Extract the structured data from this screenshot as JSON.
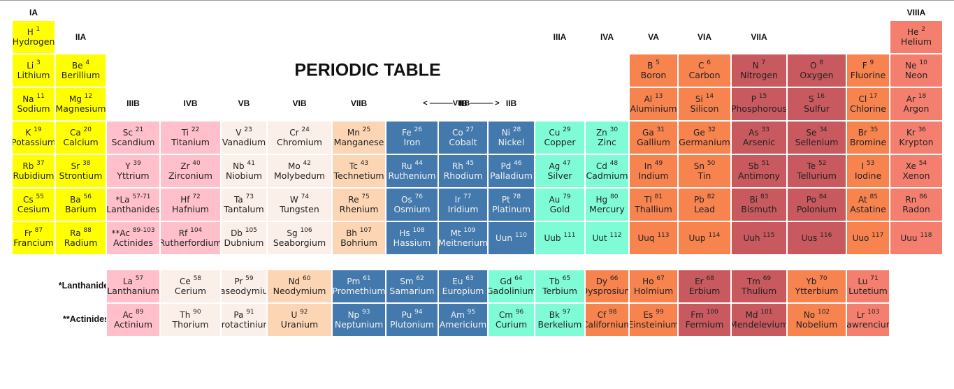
{
  "title": "PERIODIC TABLE",
  "group_labels": [
    "IA",
    "IIA",
    "IIIB",
    "IVB",
    "VB",
    "VIB",
    "VIIB",
    "VIIIB",
    "IB",
    "IIB",
    "IIIA",
    "IVA",
    "VA",
    "VIA",
    "VIIA",
    "VIIIA"
  ],
  "viiib_label": "<  ———VIIIB———  >",
  "row_labels": {
    "lanthanides": "*Lanthanides",
    "actinides": "**Actinides"
  },
  "category_colors": {
    "s": "#ffff00",
    "ln_ac": "#ffc0cb",
    "pink": "#ffc0cb",
    "pale": "#fbefe9",
    "peach": "#fcd5b4",
    "blue": "#4379ad",
    "aqua": "#7ffcd6",
    "orange": "#f7834f",
    "red": "#c8595e",
    "salmon": "#f47f6f"
  },
  "elements": [
    {
      "sym": "H",
      "num": "1",
      "name": "Hydrogen",
      "cat": "s"
    },
    {
      "sym": "He",
      "num": "2",
      "name": "Helium",
      "cat": "salmon"
    },
    {
      "sym": "Li",
      "num": "3",
      "name": "Lithium",
      "cat": "s"
    },
    {
      "sym": "Be",
      "num": "4",
      "name": "Berillium",
      "cat": "s"
    },
    {
      "sym": "B",
      "num": "5",
      "name": "Boron",
      "cat": "orange"
    },
    {
      "sym": "C",
      "num": "6",
      "name": "Carbon",
      "cat": "orange"
    },
    {
      "sym": "N",
      "num": "7",
      "name": "Nitrogen",
      "cat": "red"
    },
    {
      "sym": "O",
      "num": "8",
      "name": "Oxygen",
      "cat": "red"
    },
    {
      "sym": "F",
      "num": "9",
      "name": "Fluorine",
      "cat": "orange"
    },
    {
      "sym": "Ne",
      "num": "10",
      "name": "Neon",
      "cat": "salmon"
    },
    {
      "sym": "Na",
      "num": "11",
      "name": "Sodium",
      "cat": "s"
    },
    {
      "sym": "Mg",
      "num": "12",
      "name": "Magnesium",
      "cat": "s"
    },
    {
      "sym": "Al",
      "num": "13",
      "name": "Aluminium",
      "cat": "orange"
    },
    {
      "sym": "Si",
      "num": "14",
      "name": "Silicon",
      "cat": "orange"
    },
    {
      "sym": "P",
      "num": "15",
      "name": "Phosphorous",
      "cat": "red"
    },
    {
      "sym": "S",
      "num": "16",
      "name": "Sulfur",
      "cat": "red"
    },
    {
      "sym": "Cl",
      "num": "17",
      "name": "Chlorine",
      "cat": "orange"
    },
    {
      "sym": "Ar",
      "num": "18",
      "name": "Argon",
      "cat": "salmon"
    },
    {
      "sym": "K",
      "num": "19",
      "name": "Potassium",
      "cat": "s"
    },
    {
      "sym": "Ca",
      "num": "20",
      "name": "Calcium",
      "cat": "s"
    },
    {
      "sym": "Sc",
      "num": "21",
      "name": "Scandium",
      "cat": "pink"
    },
    {
      "sym": "Ti",
      "num": "22",
      "name": "Titanium",
      "cat": "pink"
    },
    {
      "sym": "V",
      "num": "23",
      "name": "Vanadium",
      "cat": "pale"
    },
    {
      "sym": "Cr",
      "num": "24",
      "name": "Chromium",
      "cat": "pale"
    },
    {
      "sym": "Mn",
      "num": "25",
      "name": "Manganese",
      "cat": "peach"
    },
    {
      "sym": "Fe",
      "num": "26",
      "name": "Iron",
      "cat": "blue"
    },
    {
      "sym": "Co",
      "num": "27",
      "name": "Cobalt",
      "cat": "blue"
    },
    {
      "sym": "Ni",
      "num": "28",
      "name": "Nickel",
      "cat": "blue"
    },
    {
      "sym": "Cu",
      "num": "29",
      "name": "Copper",
      "cat": "aqua"
    },
    {
      "sym": "Zn",
      "num": "30",
      "name": "Zinc",
      "cat": "aqua"
    },
    {
      "sym": "Ga",
      "num": "31",
      "name": "Gallium",
      "cat": "orange"
    },
    {
      "sym": "Ge",
      "num": "32",
      "name": "Germanium",
      "cat": "orange"
    },
    {
      "sym": "As",
      "num": "33",
      "name": "Arsenic",
      "cat": "red"
    },
    {
      "sym": "Se",
      "num": "34",
      "name": "Sellenium",
      "cat": "red"
    },
    {
      "sym": "Br",
      "num": "35",
      "name": "Bromine",
      "cat": "orange"
    },
    {
      "sym": "Kr",
      "num": "36",
      "name": "Krypton",
      "cat": "salmon"
    },
    {
      "sym": "Rb",
      "num": "37",
      "name": "Rubidium",
      "cat": "s"
    },
    {
      "sym": "Sr",
      "num": "38",
      "name": "Strontium",
      "cat": "s"
    },
    {
      "sym": "Y",
      "num": "39",
      "name": "Yttrium",
      "cat": "pink"
    },
    {
      "sym": "Zr",
      "num": "40",
      "name": "Zirconium",
      "cat": "pink"
    },
    {
      "sym": "Nb",
      "num": "41",
      "name": "Niobium",
      "cat": "pale"
    },
    {
      "sym": "Mo",
      "num": "42",
      "name": "Molybedum",
      "cat": "pale"
    },
    {
      "sym": "Tc",
      "num": "43",
      "name": "Technetium",
      "cat": "peach"
    },
    {
      "sym": "Ru",
      "num": "44",
      "name": "Ruthenium",
      "cat": "blue"
    },
    {
      "sym": "Rh",
      "num": "45",
      "name": "Rhodium",
      "cat": "blue"
    },
    {
      "sym": "Pd",
      "num": "46",
      "name": "Palladium",
      "cat": "blue"
    },
    {
      "sym": "Ag",
      "num": "47",
      "name": "Silver",
      "cat": "aqua"
    },
    {
      "sym": "Cd",
      "num": "48",
      "name": "Cadmium",
      "cat": "aqua"
    },
    {
      "sym": "In",
      "num": "49",
      "name": "Indium",
      "cat": "orange"
    },
    {
      "sym": "Sn",
      "num": "50",
      "name": "Tin",
      "cat": "orange"
    },
    {
      "sym": "Sb",
      "num": "51",
      "name": "Antimony",
      "cat": "red"
    },
    {
      "sym": "Te",
      "num": "52",
      "name": "Tellurium",
      "cat": "red"
    },
    {
      "sym": "I",
      "num": "53",
      "name": "Iodine",
      "cat": "orange"
    },
    {
      "sym": "Xe",
      "num": "54",
      "name": "Xenon",
      "cat": "salmon"
    },
    {
      "sym": "Cs",
      "num": "55",
      "name": "Cesium",
      "cat": "s"
    },
    {
      "sym": "Ba",
      "num": "56",
      "name": "Barium",
      "cat": "s"
    },
    {
      "sym": "*La",
      "num": "57-71",
      "name": "Lanthanides",
      "cat": "ln_ac"
    },
    {
      "sym": "Hf",
      "num": "72",
      "name": "Hafnium",
      "cat": "pink"
    },
    {
      "sym": "Ta",
      "num": "73",
      "name": "Tantalum",
      "cat": "pale"
    },
    {
      "sym": "W",
      "num": "74",
      "name": "Tungsten",
      "cat": "pale"
    },
    {
      "sym": "Re",
      "num": "75",
      "name": "Rhenium",
      "cat": "peach"
    },
    {
      "sym": "Os",
      "num": "76",
      "name": "Osmium",
      "cat": "blue"
    },
    {
      "sym": "Ir",
      "num": "77",
      "name": "Iridium",
      "cat": "blue"
    },
    {
      "sym": "Pt",
      "num": "78",
      "name": "Platinum",
      "cat": "blue"
    },
    {
      "sym": "Au",
      "num": "79",
      "name": "Gold",
      "cat": "aqua"
    },
    {
      "sym": "Hg",
      "num": "80",
      "name": "Mercury",
      "cat": "aqua"
    },
    {
      "sym": "Tl",
      "num": "81",
      "name": "Thallium",
      "cat": "orange"
    },
    {
      "sym": "Pb",
      "num": "82",
      "name": "Lead",
      "cat": "orange"
    },
    {
      "sym": "Bi",
      "num": "83",
      "name": "Bismuth",
      "cat": "red"
    },
    {
      "sym": "Po",
      "num": "84",
      "name": "Polonium",
      "cat": "red"
    },
    {
      "sym": "At",
      "num": "85",
      "name": "Astatine",
      "cat": "orange"
    },
    {
      "sym": "Rn",
      "num": "86",
      "name": "Radon",
      "cat": "salmon"
    },
    {
      "sym": "Fr",
      "num": "87",
      "name": "Francium",
      "cat": "s"
    },
    {
      "sym": "Ra",
      "num": "88",
      "name": "Radium",
      "cat": "s"
    },
    {
      "sym": "**Ac",
      "num": "89-103",
      "name": "Actinides",
      "cat": "ln_ac"
    },
    {
      "sym": "Rf",
      "num": "104",
      "name": "Rutherfordium",
      "cat": "pink"
    },
    {
      "sym": "Db",
      "num": "105",
      "name": "Dubnium",
      "cat": "pale"
    },
    {
      "sym": "Sg",
      "num": "106",
      "name": "Seaborgium",
      "cat": "pale"
    },
    {
      "sym": "Bh",
      "num": "107",
      "name": "Bohrium",
      "cat": "peach"
    },
    {
      "sym": "Hs",
      "num": "108",
      "name": "Hassium",
      "cat": "blue"
    },
    {
      "sym": "Mt",
      "num": "109",
      "name": "Meitnerium",
      "cat": "blue"
    },
    {
      "sym": "Uun",
      "num": "110",
      "name": "",
      "cat": "blue"
    },
    {
      "sym": "Uub",
      "num": "111",
      "name": "",
      "cat": "aqua"
    },
    {
      "sym": "Uut",
      "num": "112",
      "name": "",
      "cat": "aqua"
    },
    {
      "sym": "Uuq",
      "num": "113",
      "name": "",
      "cat": "orange"
    },
    {
      "sym": "Uup",
      "num": "114",
      "name": "",
      "cat": "orange"
    },
    {
      "sym": "Uuh",
      "num": "115",
      "name": "",
      "cat": "red"
    },
    {
      "sym": "Uus",
      "num": "116",
      "name": "",
      "cat": "red"
    },
    {
      "sym": "Uuo",
      "num": "117",
      "name": "",
      "cat": "orange"
    },
    {
      "sym": "Uuu",
      "num": "118",
      "name": "",
      "cat": "salmon"
    }
  ],
  "lanthanides": [
    {
      "sym": "La",
      "num": "57",
      "name": "Lanthanium",
      "cat": "pink"
    },
    {
      "sym": "Ce",
      "num": "58",
      "name": "Cerium",
      "cat": "pale"
    },
    {
      "sym": "Pr",
      "num": "59",
      "name": "Praseodymium",
      "cat": "pale"
    },
    {
      "sym": "Nd",
      "num": "60",
      "name": "Neodymium",
      "cat": "peach"
    },
    {
      "sym": "Pm",
      "num": "61",
      "name": "Promethium",
      "cat": "blue"
    },
    {
      "sym": "Sm",
      "num": "62",
      "name": "Samarium",
      "cat": "blue"
    },
    {
      "sym": "Eu",
      "num": "63",
      "name": "Europium",
      "cat": "blue"
    },
    {
      "sym": "Gd",
      "num": "64",
      "name": "Gadolinium",
      "cat": "aqua"
    },
    {
      "sym": "Tb",
      "num": "65",
      "name": "Terbium",
      "cat": "aqua"
    },
    {
      "sym": "Dy",
      "num": "66",
      "name": "Dysprosium",
      "cat": "orange"
    },
    {
      "sym": "Ho",
      "num": "67",
      "name": "Holmium",
      "cat": "orange"
    },
    {
      "sym": "Er",
      "num": "68",
      "name": "Erbium",
      "cat": "red"
    },
    {
      "sym": "Tm",
      "num": "69",
      "name": "Thulium",
      "cat": "red"
    },
    {
      "sym": "Yb",
      "num": "70",
      "name": "Ytterbium",
      "cat": "orange"
    },
    {
      "sym": "Lu",
      "num": "71",
      "name": "Lutetium",
      "cat": "salmon"
    }
  ],
  "actinides": [
    {
      "sym": "Ac",
      "num": "89",
      "name": "Actinium",
      "cat": "pink"
    },
    {
      "sym": "Th",
      "num": "90",
      "name": "Thorium",
      "cat": "pale"
    },
    {
      "sym": "Pa",
      "num": "91",
      "name": "Protactinium",
      "cat": "pale"
    },
    {
      "sym": "U",
      "num": "92",
      "name": "Uranium",
      "cat": "peach"
    },
    {
      "sym": "Np",
      "num": "93",
      "name": "Neptunium",
      "cat": "blue"
    },
    {
      "sym": "Pu",
      "num": "94",
      "name": "Plutonium",
      "cat": "blue"
    },
    {
      "sym": "Am",
      "num": "95",
      "name": "Americium",
      "cat": "blue"
    },
    {
      "sym": "Cm",
      "num": "96",
      "name": "Curium",
      "cat": "aqua"
    },
    {
      "sym": "Bk",
      "num": "97",
      "name": "Berkelium",
      "cat": "aqua"
    },
    {
      "sym": "Cf",
      "num": "98",
      "name": "Californium",
      "cat": "orange"
    },
    {
      "sym": "Es",
      "num": "99",
      "name": "Einsteinium",
      "cat": "orange"
    },
    {
      "sym": "Fm",
      "num": "100",
      "name": "Fermium",
      "cat": "red"
    },
    {
      "sym": "Md",
      "num": "101",
      "name": "Mendelevium",
      "cat": "red"
    },
    {
      "sym": "No",
      "num": "102",
      "name": "Nobelium",
      "cat": "orange"
    },
    {
      "sym": "Lr",
      "num": "103",
      "name": "Lawrencium",
      "cat": "salmon"
    }
  ]
}
